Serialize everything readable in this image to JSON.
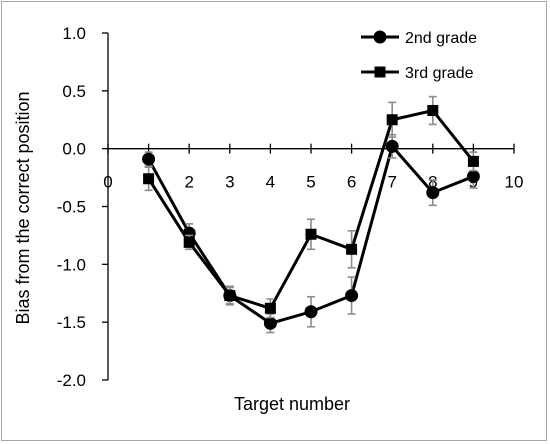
{
  "chart_data": {
    "type": "line",
    "xlabel": "Target number",
    "ylabel": "Bias from the correct position",
    "xlim": [
      0,
      10
    ],
    "ylim": [
      -2.0,
      1.0
    ],
    "x_ticks": [
      "0",
      "2",
      "3",
      "4",
      "5",
      "6",
      "7",
      "8",
      "9",
      "10"
    ],
    "y_ticks": [
      "1.0",
      "0.5",
      "0.0",
      "-0.5",
      "-1.0",
      "-1.5",
      "-2.0"
    ],
    "grid": false,
    "legend_position": "top-right",
    "series": [
      {
        "name": "2nd grade",
        "marker": "circle",
        "color": "#000000",
        "x": [
          1,
          2,
          3,
          4,
          5,
          6,
          7,
          8,
          9
        ],
        "y": [
          -0.09,
          -0.73,
          -1.27,
          -1.51,
          -1.41,
          -1.27,
          0.02,
          -0.38,
          -0.24
        ],
        "error": [
          0.06,
          0.08,
          0.07,
          0.08,
          0.13,
          0.16,
          0.1,
          0.11,
          0.1
        ]
      },
      {
        "name": "3rd grade",
        "marker": "square",
        "color": "#000000",
        "x": [
          1,
          2,
          3,
          4,
          5,
          6,
          7,
          8,
          9
        ],
        "y": [
          -0.26,
          -0.81,
          -1.27,
          -1.38,
          -0.74,
          -0.87,
          0.25,
          0.33,
          -0.11
        ],
        "error": [
          0.1,
          0.06,
          0.08,
          0.08,
          0.13,
          0.16,
          0.15,
          0.12,
          0.08
        ]
      }
    ]
  }
}
